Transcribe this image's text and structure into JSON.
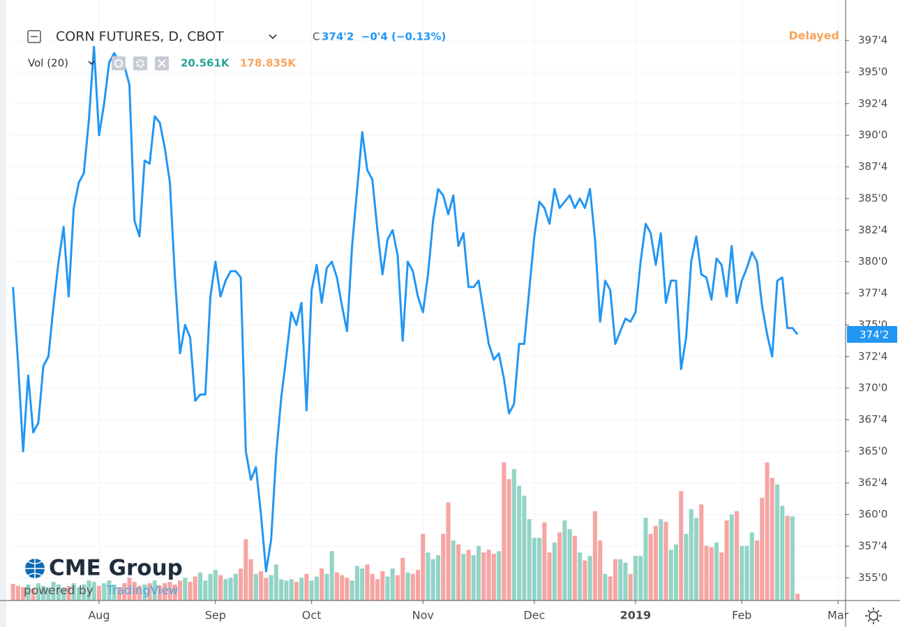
{
  "chart_data": {
    "type": "line",
    "title": "CORN FUTURES, D, CBOT",
    "quote_prefix": "C",
    "quote": "374'2  −0'4 (−0.13%)",
    "status": "Delayed",
    "volume_label": "Vol (20)",
    "volume_last": {
      "value": 20.561,
      "label": "20.561K"
    },
    "volume_ma": {
      "value": 178.835,
      "label": "178.835K"
    },
    "watermark": "CME Group",
    "powered_by": "powered by",
    "powered_brand": "TradingView",
    "last_price": {
      "value": 374.25,
      "label": "374'2"
    },
    "categories": [
      null,
      null,
      null,
      null,
      null,
      null,
      null,
      null,
      null,
      null,
      null,
      null,
      null,
      null,
      null,
      null,
      null,
      "Aug",
      null,
      null,
      null,
      null,
      null,
      null,
      null,
      null,
      null,
      null,
      null,
      null,
      null,
      null,
      null,
      null,
      null,
      null,
      null,
      null,
      null,
      null,
      "Sep",
      null,
      null,
      null,
      null,
      null,
      null,
      null,
      null,
      null,
      null,
      null,
      null,
      null,
      null,
      null,
      null,
      null,
      null,
      "Oct",
      null,
      null,
      null,
      null,
      null,
      null,
      null,
      null,
      null,
      null,
      null,
      null,
      null,
      null,
      null,
      null,
      null,
      null,
      null,
      null,
      null,
      "Nov",
      null,
      null,
      null,
      null,
      null,
      null,
      null,
      null,
      null,
      null,
      null,
      null,
      null,
      null,
      null,
      null,
      null,
      null,
      null,
      null,
      null,
      "Dec",
      null,
      null,
      null,
      null,
      null,
      null,
      null,
      null,
      null,
      null,
      null,
      null,
      null,
      null,
      null,
      null,
      null,
      null,
      null,
      "2019",
      null,
      null,
      null,
      null,
      null,
      null,
      null,
      null,
      null,
      null,
      null,
      null,
      null,
      null,
      null,
      null,
      null,
      null,
      null,
      null,
      "Feb",
      null,
      null,
      null,
      null,
      null,
      null,
      null,
      null,
      null,
      null,
      null,
      null,
      null,
      null,
      null,
      null,
      null,
      null,
      "Mar",
      null
    ],
    "price": {
      "color": "#2196f3",
      "values": [
        378,
        372,
        365,
        371,
        366.5,
        367.25,
        371.75,
        372.5,
        376.5,
        380,
        382.75,
        377.25,
        384.25,
        386.25,
        387,
        391.25,
        397,
        390,
        392.5,
        395.75,
        396.5,
        395.75,
        395.5,
        394,
        383.25,
        382,
        388,
        387.75,
        391.5,
        391,
        389,
        386.25,
        378.75,
        372.75,
        375,
        374,
        369,
        369.5,
        369.5,
        377.25,
        380,
        377.25,
        378.5,
        379.25,
        379.25,
        378.75,
        365,
        362.75,
        363.75,
        360,
        355.5,
        358,
        364.75,
        369.25,
        372.5,
        376,
        375,
        376.75,
        368.25,
        377.75,
        379.75,
        376.75,
        379.5,
        380,
        378.75,
        376.5,
        374.5,
        381.25,
        385.75,
        390.25,
        387.25,
        386.5,
        382.5,
        379,
        381.75,
        382.5,
        380.5,
        373.75,
        380,
        379.25,
        377.25,
        376,
        379,
        383.25,
        385.75,
        385.25,
        383.75,
        385.25,
        381.25,
        382.25,
        378,
        378,
        378.5,
        376,
        373.5,
        372.25,
        372.75,
        370.75,
        368,
        368.75,
        373.5,
        373.5,
        377.75,
        382,
        384.75,
        384.25,
        383,
        385.75,
        384.25,
        384.75,
        385.25,
        384.25,
        385,
        384.25,
        385.75,
        381.75,
        375.25,
        378.5,
        377.75,
        373.5,
        374.5,
        375.5,
        375.25,
        376,
        380,
        383,
        382.25,
        379.75,
        382.25,
        376.75,
        378.5,
        378.5,
        371.5,
        374,
        380,
        382,
        379,
        378.75,
        377,
        380.25,
        379.75,
        377.25,
        381.25,
        376.75,
        378.5,
        379.5,
        380.75,
        380,
        376.5,
        374.25,
        372.5,
        378.5,
        378.75,
        374.75,
        374.75,
        374.25,
        null,
        null,
        null,
        null,
        null,
        null,
        null,
        null,
        null
      ]
    },
    "volume": {
      "up_color": "#93d4c6",
      "down_color": "#f6a5a3",
      "vlim": [
        0,
        1800
      ],
      "values": [
        50,
        44,
        40,
        48,
        36,
        52,
        44,
        40,
        56,
        48,
        36,
        44,
        52,
        40,
        48,
        60,
        56,
        44,
        52,
        60,
        48,
        40,
        52,
        68,
        56,
        44,
        48,
        52,
        60,
        44,
        52,
        56,
        48,
        60,
        68,
        56,
        72,
        84,
        60,
        80,
        92,
        76,
        64,
        68,
        80,
        96,
        184,
        124,
        80,
        88,
        68,
        76,
        108,
        64,
        60,
        64,
        56,
        68,
        80,
        60,
        72,
        96,
        80,
        148,
        84,
        76,
        68,
        60,
        104,
        96,
        108,
        80,
        64,
        88,
        72,
        96,
        76,
        128,
        84,
        80,
        92,
        200,
        144,
        124,
        136,
        200,
        294,
        180,
        168,
        140,
        152,
        136,
        164,
        144,
        152,
        140,
        148,
        414,
        364,
        394,
        344,
        314,
        244,
        188,
        188,
        234,
        144,
        174,
        204,
        240,
        214,
        194,
        144,
        120,
        134,
        268,
        180,
        80,
        72,
        124,
        124,
        114,
        80,
        134,
        134,
        248,
        200,
        224,
        244,
        236,
        152,
        168,
        328,
        200,
        274,
        248,
        288,
        164,
        160,
        174,
        144,
        240,
        258,
        268,
        164,
        164,
        204,
        180,
        308,
        414,
        368,
        348,
        284,
        254,
        252,
        20.561,
        null,
        null,
        null,
        null,
        null,
        null,
        null,
        null,
        null
      ]
    },
    "ylim": [
      353.2,
      400.7
    ],
    "yticks": [
      {
        "value": 355,
        "label": "355'0"
      },
      {
        "value": 357.5,
        "label": "357'4"
      },
      {
        "value": 360,
        "label": "360'0"
      },
      {
        "value": 362.5,
        "label": "362'4"
      },
      {
        "value": 365,
        "label": "365'0"
      },
      {
        "value": 367.5,
        "label": "367'4"
      },
      {
        "value": 370,
        "label": "370'0"
      },
      {
        "value": 372.5,
        "label": "372'4"
      },
      {
        "value": 375,
        "label": "375'0"
      },
      {
        "value": 377.5,
        "label": "377'4"
      },
      {
        "value": 380,
        "label": "380'0"
      },
      {
        "value": 382.5,
        "label": "382'4"
      },
      {
        "value": 385,
        "label": "385'0"
      },
      {
        "value": 387.5,
        "label": "387'4"
      },
      {
        "value": 390,
        "label": "390'0"
      },
      {
        "value": 392.5,
        "label": "392'4"
      },
      {
        "value": 395,
        "label": "395'0"
      },
      {
        "value": 397.5,
        "label": "397'4"
      }
    ],
    "grid": true
  }
}
